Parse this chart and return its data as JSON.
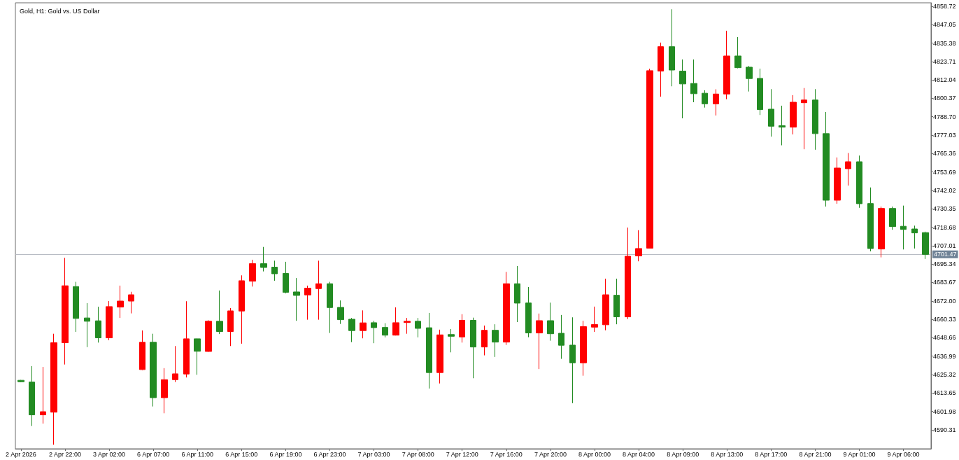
{
  "chart_data": {
    "type": "candlestick",
    "title": "Gold, H1: Gold vs. US Dollar",
    "categories": [
      "2 Apr 2026",
      null,
      null,
      null,
      "2 Apr 22:00",
      null,
      null,
      null,
      "3 Apr 02:00",
      null,
      null,
      null,
      "6 Apr 07:00",
      null,
      null,
      null,
      "6 Apr 11:00",
      null,
      null,
      null,
      "6 Apr 15:00",
      null,
      null,
      null,
      "6 Apr 19:00",
      null,
      null,
      null,
      "6 Apr 23:00",
      null,
      null,
      null,
      "7 Apr 03:00",
      null,
      null,
      null,
      "7 Apr 08:00",
      null,
      null,
      null,
      "7 Apr 12:00",
      null,
      null,
      null,
      "7 Apr 16:00",
      null,
      null,
      null,
      "7 Apr 20:00",
      null,
      null,
      null,
      "8 Apr 00:00",
      null,
      null,
      null,
      "8 Apr 04:00",
      null,
      null,
      null,
      "8 Apr 09:00",
      null,
      null,
      null,
      "8 Apr 13:00",
      null,
      null,
      null,
      "8 Apr 17:00",
      null,
      null,
      null,
      "8 Apr 21:00",
      null,
      null,
      null,
      "9 Apr 01:00",
      null,
      null,
      null,
      "9 Apr 06:00",
      null,
      null
    ],
    "ohlc": [
      [
        4621.7,
        4621.9,
        4620.6,
        4620.8
      ],
      [
        4620.6,
        4630.7,
        4592.8,
        4599.8
      ],
      [
        4599.8,
        4630.2,
        4594.3,
        4601.8
      ],
      [
        4601.5,
        4651.2,
        4580.9,
        4645.5
      ],
      [
        4645.5,
        4699.3,
        4631.7,
        4681.6
      ],
      [
        4681.1,
        4684.1,
        4652.4,
        4660.9
      ],
      [
        4661.2,
        4670.6,
        4642.7,
        4659.1
      ],
      [
        4659.4,
        4668.3,
        4645.6,
        4648.6
      ],
      [
        4648.6,
        4671.9,
        4647.1,
        4668.4
      ],
      [
        4668.1,
        4681.7,
        4661.2,
        4671.9
      ],
      [
        4671.9,
        4677.8,
        4664.1,
        4675.9
      ],
      [
        4628.5,
        4653.3,
        4628.2,
        4645.8
      ],
      [
        4645.8,
        4651.2,
        4605.1,
        4610.7
      ],
      [
        4610.7,
        4629.4,
        4600.8,
        4622.1
      ],
      [
        4622.1,
        4643.4,
        4620.6,
        4625.8
      ],
      [
        4625.7,
        4671.8,
        4623.5,
        4648.0
      ],
      [
        4648.0,
        4648.1,
        4625.2,
        4640.1
      ],
      [
        4640.0,
        4659.8,
        4639.7,
        4659.1
      ],
      [
        4659.1,
        4678.6,
        4651.0,
        4652.6
      ],
      [
        4652.6,
        4667.5,
        4643.4,
        4665.7
      ],
      [
        4665.6,
        4688.2,
        4644.9,
        4684.8
      ],
      [
        4684.5,
        4698.1,
        4681.1,
        4695.6
      ],
      [
        4695.6,
        4706.2,
        4690.7,
        4693.2
      ],
      [
        4693.4,
        4697.5,
        4684.8,
        4689.2
      ],
      [
        4689.4,
        4696.8,
        4676.8,
        4677.4
      ],
      [
        4677.7,
        4686.5,
        4659.4,
        4675.5
      ],
      [
        4675.8,
        4681.7,
        4660.1,
        4680.1
      ],
      [
        4679.8,
        4697.5,
        4660.1,
        4682.9
      ],
      [
        4682.9,
        4684.1,
        4651.7,
        4667.8
      ],
      [
        4667.9,
        4672.3,
        4657.4,
        4660.1
      ],
      [
        4660.4,
        4661.2,
        4645.9,
        4653.2
      ],
      [
        4653.2,
        4666.0,
        4648.3,
        4658.1
      ],
      [
        4658.2,
        4659.4,
        4645.2,
        4655.1
      ],
      [
        4655.2,
        4657.9,
        4648.9,
        4650.3
      ],
      [
        4650.3,
        4667.9,
        4650.1,
        4658.2
      ],
      [
        4658.3,
        4661.2,
        4651.2,
        4659.1
      ],
      [
        4659.1,
        4661.2,
        4648.9,
        4654.6
      ],
      [
        4655.0,
        4664.4,
        4616.5,
        4626.6
      ],
      [
        4626.6,
        4653.8,
        4619.7,
        4650.5
      ],
      [
        4650.7,
        4654.2,
        4639.4,
        4649.6
      ],
      [
        4649.2,
        4663.6,
        4645.6,
        4659.7
      ],
      [
        4659.7,
        4661.4,
        4623.0,
        4642.8
      ],
      [
        4642.8,
        4656.4,
        4637.5,
        4653.4
      ],
      [
        4653.4,
        4657.2,
        4636.5,
        4645.9
      ],
      [
        4645.9,
        4690.4,
        4644.1,
        4682.9
      ],
      [
        4682.9,
        4694.1,
        4658.6,
        4670.6
      ],
      [
        4670.7,
        4680.8,
        4649.0,
        4651.7
      ],
      [
        4651.7,
        4664.0,
        4628.8,
        4659.5
      ],
      [
        4659.5,
        4670.9,
        4646.8,
        4651.2
      ],
      [
        4651.5,
        4663.1,
        4635.3,
        4643.9
      ],
      [
        4644.0,
        4661.6,
        4607.2,
        4632.8
      ],
      [
        4632.8,
        4659.4,
        4624.6,
        4655.7
      ],
      [
        4655.4,
        4668.4,
        4652.4,
        4657.0
      ],
      [
        4656.9,
        4686.1,
        4653.4,
        4675.9
      ],
      [
        4675.6,
        4686.1,
        4657.2,
        4661.9
      ],
      [
        4661.9,
        4718.5,
        4660.5,
        4700.3
      ],
      [
        4700.5,
        4716.8,
        4697.1,
        4705.2
      ],
      [
        4705.4,
        4819.1,
        4705.2,
        4817.9
      ],
      [
        4817.6,
        4835.7,
        4801.4,
        4833.1
      ],
      [
        4833.1,
        4856.8,
        4808.0,
        4818.3
      ],
      [
        4817.6,
        4825.0,
        4787.7,
        4809.5
      ],
      [
        4809.8,
        4825.0,
        4797.9,
        4803.3
      ],
      [
        4803.6,
        4805.5,
        4794.5,
        4796.9
      ],
      [
        4796.9,
        4806.1,
        4789.5,
        4803.1
      ],
      [
        4803.1,
        4843.2,
        4799.8,
        4827.2
      ],
      [
        4827.2,
        4839.2,
        4819.4,
        4819.8
      ],
      [
        4820.1,
        4820.9,
        4804.7,
        4812.9
      ],
      [
        4813.0,
        4819.2,
        4789.8,
        4793.2
      ],
      [
        4793.5,
        4806.2,
        4776.1,
        4782.7
      ],
      [
        4783.0,
        4795.7,
        4770.6,
        4782.1
      ],
      [
        4782.1,
        4802.4,
        4777.5,
        4797.9
      ],
      [
        4797.6,
        4806.9,
        4768.1,
        4799.3
      ],
      [
        4799.3,
        4806.2,
        4767.8,
        4778.0
      ],
      [
        4778.0,
        4791.7,
        4731.8,
        4735.8
      ],
      [
        4735.8,
        4762.9,
        4733.6,
        4756.2
      ],
      [
        4755.8,
        4765.7,
        4745.1,
        4760.2
      ],
      [
        4760.2,
        4764.1,
        4731.0,
        4733.6
      ],
      [
        4733.7,
        4743.9,
        4703.4,
        4705.2
      ],
      [
        4704.9,
        4731.8,
        4699.6,
        4730.6
      ],
      [
        4730.6,
        4731.8,
        4717.1,
        4719.1
      ],
      [
        4719.3,
        4732.4,
        4704.6,
        4717.3
      ],
      [
        4717.6,
        4719.7,
        4705.2,
        4715.1
      ],
      [
        4715.3,
        4715.9,
        4698.6,
        4701.47
      ]
    ],
    "colors": [
      "#228b22",
      "#228b22",
      "#ff0000",
      "#ff0000",
      "#ff0000",
      "#228b22",
      "#228b22",
      "#228b22",
      "#ff0000",
      "#ff0000",
      "#ff0000",
      "#ff0000",
      "#228b22",
      "#ff0000",
      "#ff0000",
      "#ff0000",
      "#228b22",
      "#ff0000",
      "#228b22",
      "#ff0000",
      "#ff0000",
      "#ff0000",
      "#228b22",
      "#228b22",
      "#228b22",
      "#228b22",
      "#ff0000",
      "#ff0000",
      "#228b22",
      "#228b22",
      "#228b22",
      "#ff0000",
      "#228b22",
      "#228b22",
      "#ff0000",
      "#ff0000",
      "#228b22",
      "#228b22",
      "#ff0000",
      "#228b22",
      "#ff0000",
      "#228b22",
      "#ff0000",
      "#228b22",
      "#ff0000",
      "#228b22",
      "#228b22",
      "#ff0000",
      "#228b22",
      "#228b22",
      "#228b22",
      "#ff0000",
      "#ff0000",
      "#ff0000",
      "#228b22",
      "#ff0000",
      "#ff0000",
      "#ff0000",
      "#ff0000",
      "#228b22",
      "#228b22",
      "#228b22",
      "#228b22",
      "#ff0000",
      "#ff0000",
      "#228b22",
      "#228b22",
      "#228b22",
      "#228b22",
      "#228b22",
      "#ff0000",
      "#ff0000",
      "#228b22",
      "#228b22",
      "#ff0000",
      "#ff0000",
      "#228b22",
      "#228b22",
      "#ff0000",
      "#228b22",
      "#228b22",
      "#228b22",
      "#228b22"
    ],
    "ylim": [
      4578.3,
      4860.9
    ],
    "yticks": [
      {
        "value": 4590.31,
        "label": "4590.31"
      },
      {
        "value": 4601.98,
        "label": "4601.98"
      },
      {
        "value": 4613.65,
        "label": "4613.65"
      },
      {
        "value": 4625.32,
        "label": "4625.32"
      },
      {
        "value": 4636.99,
        "label": "4636.99"
      },
      {
        "value": 4648.66,
        "label": "4648.66"
      },
      {
        "value": 4660.33,
        "label": "4660.33"
      },
      {
        "value": 4672,
        "label": "4672.00"
      },
      {
        "value": 4683.67,
        "label": "4683.67"
      },
      {
        "value": 4695.34,
        "label": "4695.34"
      },
      {
        "value": 4707.01,
        "label": "4707.01"
      },
      {
        "value": 4718.68,
        "label": "4718.68"
      },
      {
        "value": 4730.35,
        "label": "4730.35"
      },
      {
        "value": 4742.02,
        "label": "4742.02"
      },
      {
        "value": 4753.69,
        "label": "4753.69"
      },
      {
        "value": 4765.36,
        "label": "4765.36"
      },
      {
        "value": 4777.03,
        "label": "4777.03"
      },
      {
        "value": 4788.7,
        "label": "4788.70"
      },
      {
        "value": 4800.37,
        "label": "4800.37"
      },
      {
        "value": 4812.04,
        "label": "4812.04"
      },
      {
        "value": 4823.71,
        "label": "4823.71"
      },
      {
        "value": 4835.38,
        "label": "4835.38"
      },
      {
        "value": 4847.05,
        "label": "4847.05"
      },
      {
        "value": 4858.72,
        "label": "4858.72"
      }
    ],
    "ref_lines": [
      {
        "axis": "y",
        "value": 4701.47,
        "label": "4701.47",
        "color": "#b8bcc4"
      }
    ]
  }
}
